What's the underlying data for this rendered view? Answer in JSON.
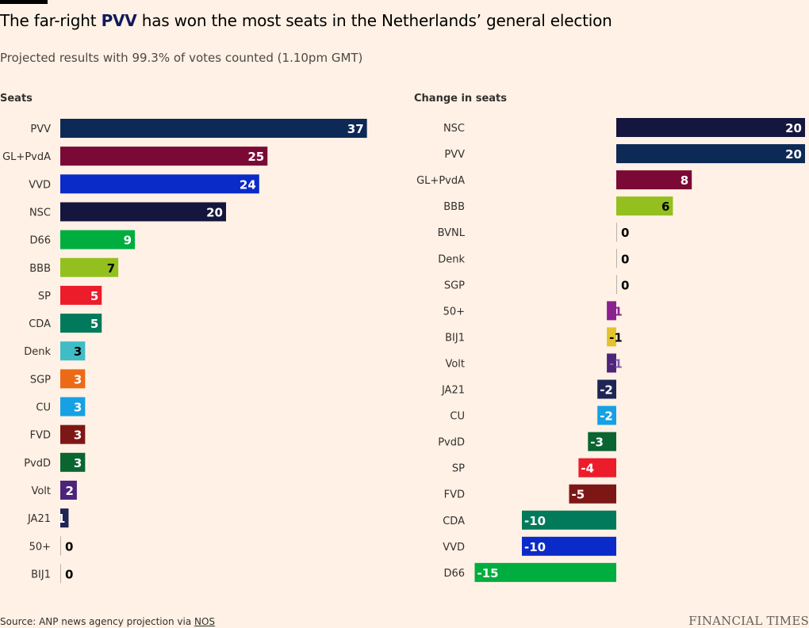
{
  "header": {
    "title_before": "The far-right ",
    "title_highlight": "PVV",
    "title_after": " has won the most seats in the Netherlands’ general election",
    "subtitle": "Projected results with 99.3% of votes counted (1.10pm GMT)"
  },
  "footer": {
    "source_prefix": "Source: ANP news agency projection via ",
    "source_link": "NOS",
    "brand": "FINANCIAL TIMES"
  },
  "chart_data": [
    {
      "type": "bar",
      "orientation": "horizontal",
      "title": "Seats",
      "categories": [
        "PVV",
        "GL+PvdA",
        "VVD",
        "NSC",
        "D66",
        "BBB",
        "SP",
        "CDA",
        "Denk",
        "SGP",
        "CU",
        "FVD",
        "PvdD",
        "Volt",
        "JA21",
        "50+",
        "BIJ1"
      ],
      "values": [
        37,
        25,
        24,
        20,
        9,
        7,
        5,
        5,
        3,
        3,
        3,
        3,
        3,
        2,
        1,
        0,
        0
      ],
      "colors": [
        "#0d2a57",
        "#7a0a35",
        "#0b2bc8",
        "#14163d",
        "#00ad3f",
        "#93c01f",
        "#ec1c2b",
        "#007a5a",
        "#3fbcc6",
        "#ec6a16",
        "#15a1e4",
        "#7d1716",
        "#0a6531",
        "#4c2479",
        "#1f2555",
        "#e3b8e3",
        "#dddd00"
      ],
      "label_colors": [
        "#ffffff",
        "#ffffff",
        "#ffffff",
        "#ffffff",
        "#ffffff",
        "#000000",
        "#ffffff",
        "#ffffff",
        "#000000",
        "#ffffff",
        "#ffffff",
        "#ffffff",
        "#ffffff",
        "#ffffff",
        "#ffffff",
        "#000000",
        "#000000"
      ]
    },
    {
      "type": "bar",
      "orientation": "horizontal",
      "title": "Change in seats",
      "categories": [
        "NSC",
        "PVV",
        "GL+PvdA",
        "BBB",
        "BVNL",
        "Denk",
        "SGP",
        "50+",
        "BIJ1",
        "Volt",
        "JA21",
        "CU",
        "PvdD",
        "SP",
        "FVD",
        "CDA",
        "VVD",
        "D66"
      ],
      "values": [
        20,
        20,
        8,
        6,
        0,
        0,
        0,
        -1,
        -1,
        -1,
        -2,
        -2,
        -3,
        -4,
        -5,
        -10,
        -10,
        -15
      ],
      "colors": [
        "#14163d",
        "#0d2a57",
        "#7a0a35",
        "#93c01f",
        "#c7c3bd",
        "#3fbcc6",
        "#ec6a16",
        "#8a2190",
        "#e3c22c",
        "#4c2479",
        "#1f2555",
        "#15a1e4",
        "#0a6531",
        "#ec1c2b",
        "#7d1716",
        "#007a5a",
        "#0b2bc8",
        "#00ad3f"
      ],
      "label_colors": [
        "#ffffff",
        "#ffffff",
        "#ffffff",
        "#000000",
        "#000000",
        "#000000",
        "#000000",
        "#8a2190",
        "#000000",
        "#7e5cae",
        "#ffffff",
        "#ffffff",
        "#ffffff",
        "#ffffff",
        "#ffffff",
        "#ffffff",
        "#ffffff",
        "#ffffff"
      ]
    }
  ]
}
